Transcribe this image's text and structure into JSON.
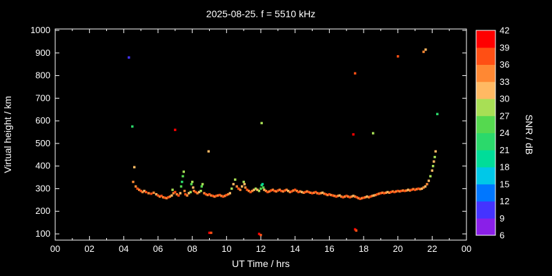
{
  "title": "2025-08-25. f = 5510 kHz",
  "colors": {
    "background": "#000000",
    "foreground": "#ffffff"
  },
  "axes": {
    "x": {
      "label": "UT Time / hrs",
      "tick_hours": [
        0,
        2,
        4,
        6,
        8,
        10,
        12,
        14,
        16,
        18,
        20,
        22,
        24
      ],
      "tick_labels": [
        "00",
        "02",
        "04",
        "06",
        "08",
        "10",
        "12",
        "14",
        "16",
        "18",
        "20",
        "22",
        "00"
      ]
    },
    "y": {
      "label": "Virtual height / km",
      "ticks": [
        100,
        200,
        300,
        400,
        500,
        600,
        700,
        800,
        900,
        1000
      ]
    }
  },
  "colorbar": {
    "label": "SNR / dB",
    "ticks": [
      42,
      39,
      36,
      33,
      30,
      27,
      24,
      21,
      18,
      15,
      12,
      9,
      6
    ],
    "bands": [
      {
        "min": 6,
        "max": 9,
        "color": "#8a1fe8"
      },
      {
        "min": 9,
        "max": 12,
        "color": "#4433ff"
      },
      {
        "min": 12,
        "max": 15,
        "color": "#0077ff"
      },
      {
        "min": 15,
        "max": 18,
        "color": "#00c8e8"
      },
      {
        "min": 18,
        "max": 21,
        "color": "#00dd99"
      },
      {
        "min": 21,
        "max": 24,
        "color": "#2bd96b"
      },
      {
        "min": 24,
        "max": 27,
        "color": "#55d94f"
      },
      {
        "min": 27,
        "max": 30,
        "color": "#a8df55"
      },
      {
        "min": 30,
        "max": 33,
        "color": "#ffb963"
      },
      {
        "min": 33,
        "max": 36,
        "color": "#ff8833"
      },
      {
        "min": 36,
        "max": 39,
        "color": "#ff4f14"
      },
      {
        "min": 39,
        "max": 42,
        "color": "#ff0000"
      }
    ]
  },
  "chart_data": {
    "type": "scatter",
    "title": "2025-08-25. f = 5510 kHz",
    "xlabel": "UT Time / hrs",
    "ylabel": "Virtual height / km",
    "color_label": "SNR / dB",
    "xlim": [
      0,
      24
    ],
    "ylim": [
      100,
      1000
    ],
    "grid": false,
    "points_format": [
      "ut_hours",
      "virtual_height_km",
      "snr_db"
    ],
    "points": [
      [
        4.3,
        880,
        11
      ],
      [
        4.5,
        575,
        23
      ],
      [
        4.62,
        395,
        32
      ],
      [
        7.0,
        560,
        41
      ],
      [
        8.95,
        465,
        32
      ],
      [
        9.0,
        105,
        41
      ],
      [
        9.1,
        105,
        38
      ],
      [
        11.9,
        100,
        41
      ],
      [
        12.0,
        95,
        38
      ],
      [
        12.05,
        590,
        29
      ],
      [
        17.4,
        540,
        41
      ],
      [
        17.5,
        810,
        38
      ],
      [
        17.5,
        120,
        41
      ],
      [
        17.57,
        115,
        38
      ],
      [
        18.55,
        545,
        29
      ],
      [
        20.0,
        885,
        38
      ],
      [
        21.5,
        905,
        35
      ],
      [
        21.62,
        915,
        32
      ],
      [
        22.3,
        630,
        23
      ],
      [
        4.55,
        330,
        35
      ],
      [
        4.7,
        310,
        35
      ],
      [
        4.8,
        300,
        38
      ],
      [
        4.9,
        295,
        35
      ],
      [
        5.0,
        290,
        38
      ],
      [
        5.1,
        285,
        35
      ],
      [
        5.2,
        290,
        32
      ],
      [
        5.3,
        285,
        38
      ],
      [
        5.45,
        280,
        35
      ],
      [
        5.6,
        278,
        38
      ],
      [
        5.75,
        282,
        35
      ],
      [
        5.9,
        275,
        32
      ],
      [
        6.0,
        270,
        38
      ],
      [
        6.1,
        265,
        35
      ],
      [
        6.2,
        268,
        38
      ],
      [
        6.3,
        262,
        35
      ],
      [
        6.4,
        260,
        38
      ],
      [
        6.5,
        258,
        35
      ],
      [
        6.6,
        262,
        38
      ],
      [
        6.7,
        265,
        35
      ],
      [
        6.8,
        270,
        32
      ],
      [
        6.85,
        295,
        29
      ],
      [
        6.9,
        280,
        35
      ],
      [
        7.0,
        285,
        38
      ],
      [
        7.1,
        275,
        35
      ],
      [
        7.2,
        270,
        38
      ],
      [
        7.3,
        280,
        32
      ],
      [
        7.35,
        310,
        26
      ],
      [
        7.4,
        330,
        23
      ],
      [
        7.45,
        355,
        26
      ],
      [
        7.5,
        375,
        29
      ],
      [
        7.55,
        290,
        35
      ],
      [
        7.6,
        275,
        38
      ],
      [
        7.7,
        270,
        35
      ],
      [
        7.8,
        280,
        32
      ],
      [
        7.9,
        285,
        29
      ],
      [
        7.95,
        320,
        26
      ],
      [
        8.0,
        330,
        29
      ],
      [
        8.05,
        305,
        32
      ],
      [
        8.1,
        290,
        35
      ],
      [
        8.2,
        285,
        38
      ],
      [
        8.3,
        280,
        35
      ],
      [
        8.4,
        285,
        32
      ],
      [
        8.5,
        290,
        29
      ],
      [
        8.55,
        310,
        26
      ],
      [
        8.6,
        320,
        29
      ],
      [
        8.7,
        280,
        35
      ],
      [
        8.8,
        275,
        38
      ],
      [
        8.9,
        272,
        35
      ],
      [
        9.0,
        275,
        38
      ],
      [
        9.1,
        270,
        35
      ],
      [
        9.2,
        268,
        38
      ],
      [
        9.3,
        265,
        35
      ],
      [
        9.4,
        268,
        38
      ],
      [
        9.5,
        270,
        35
      ],
      [
        9.6,
        272,
        38
      ],
      [
        9.7,
        268,
        35
      ],
      [
        9.8,
        265,
        38
      ],
      [
        9.9,
        268,
        35
      ],
      [
        10.0,
        272,
        38
      ],
      [
        10.1,
        275,
        35
      ],
      [
        10.2,
        280,
        32
      ],
      [
        10.3,
        300,
        29
      ],
      [
        10.4,
        320,
        32
      ],
      [
        10.5,
        340,
        29
      ],
      [
        10.6,
        310,
        35
      ],
      [
        10.7,
        300,
        38
      ],
      [
        10.8,
        295,
        35
      ],
      [
        10.9,
        310,
        32
      ],
      [
        11.0,
        330,
        29
      ],
      [
        11.05,
        320,
        32
      ],
      [
        11.1,
        305,
        35
      ],
      [
        11.2,
        295,
        38
      ],
      [
        11.3,
        290,
        35
      ],
      [
        11.4,
        285,
        38
      ],
      [
        11.5,
        290,
        35
      ],
      [
        11.6,
        295,
        32
      ],
      [
        11.7,
        300,
        29
      ],
      [
        11.8,
        295,
        32
      ],
      [
        11.9,
        290,
        29
      ],
      [
        12.0,
        300,
        26
      ],
      [
        12.05,
        315,
        23
      ],
      [
        12.1,
        320,
        20
      ],
      [
        12.15,
        305,
        26
      ],
      [
        12.2,
        295,
        32
      ],
      [
        12.3,
        290,
        35
      ],
      [
        12.4,
        285,
        38
      ],
      [
        12.5,
        288,
        35
      ],
      [
        12.6,
        292,
        38
      ],
      [
        12.7,
        295,
        35
      ],
      [
        12.8,
        290,
        38
      ],
      [
        12.9,
        288,
        35
      ],
      [
        13.0,
        292,
        38
      ],
      [
        13.1,
        295,
        35
      ],
      [
        13.2,
        290,
        38
      ],
      [
        13.3,
        288,
        35
      ],
      [
        13.4,
        292,
        38
      ],
      [
        13.5,
        295,
        35
      ],
      [
        13.6,
        290,
        32
      ],
      [
        13.7,
        285,
        35
      ],
      [
        13.8,
        288,
        38
      ],
      [
        13.9,
        292,
        35
      ],
      [
        14.0,
        295,
        38
      ],
      [
        14.1,
        290,
        35
      ],
      [
        14.2,
        285,
        38
      ],
      [
        14.3,
        288,
        35
      ],
      [
        14.4,
        285,
        32
      ],
      [
        14.5,
        282,
        35
      ],
      [
        14.6,
        285,
        38
      ],
      [
        14.7,
        288,
        35
      ],
      [
        14.8,
        285,
        38
      ],
      [
        14.9,
        282,
        35
      ],
      [
        15.0,
        280,
        38
      ],
      [
        15.1,
        282,
        35
      ],
      [
        15.2,
        285,
        38
      ],
      [
        15.3,
        280,
        35
      ],
      [
        15.4,
        278,
        38
      ],
      [
        15.5,
        280,
        35
      ],
      [
        15.6,
        282,
        32
      ],
      [
        15.7,
        278,
        35
      ],
      [
        15.8,
        275,
        38
      ],
      [
        15.9,
        272,
        35
      ],
      [
        16.0,
        275,
        38
      ],
      [
        16.1,
        272,
        35
      ],
      [
        16.2,
        270,
        38
      ],
      [
        16.3,
        268,
        35
      ],
      [
        16.4,
        265,
        38
      ],
      [
        16.5,
        268,
        35
      ],
      [
        16.6,
        270,
        32
      ],
      [
        16.7,
        265,
        35
      ],
      [
        16.8,
        262,
        38
      ],
      [
        16.9,
        265,
        35
      ],
      [
        17.0,
        268,
        38
      ],
      [
        17.1,
        265,
        35
      ],
      [
        17.2,
        262,
        38
      ],
      [
        17.3,
        265,
        35
      ],
      [
        17.4,
        268,
        32
      ],
      [
        17.5,
        265,
        35
      ],
      [
        17.6,
        262,
        38
      ],
      [
        17.7,
        258,
        35
      ],
      [
        17.8,
        255,
        38
      ],
      [
        17.9,
        258,
        35
      ],
      [
        18.0,
        260,
        38
      ],
      [
        18.1,
        262,
        35
      ],
      [
        18.2,
        265,
        32
      ],
      [
        18.3,
        262,
        35
      ],
      [
        18.4,
        265,
        38
      ],
      [
        18.5,
        268,
        35
      ],
      [
        18.6,
        270,
        32
      ],
      [
        18.7,
        272,
        35
      ],
      [
        18.8,
        275,
        38
      ],
      [
        18.9,
        278,
        35
      ],
      [
        19.0,
        280,
        38
      ],
      [
        19.1,
        282,
        35
      ],
      [
        19.2,
        280,
        38
      ],
      [
        19.3,
        282,
        35
      ],
      [
        19.4,
        285,
        32
      ],
      [
        19.5,
        282,
        35
      ],
      [
        19.6,
        285,
        38
      ],
      [
        19.7,
        288,
        35
      ],
      [
        19.8,
        285,
        38
      ],
      [
        19.9,
        288,
        35
      ],
      [
        20.0,
        290,
        38
      ],
      [
        20.1,
        288,
        35
      ],
      [
        20.2,
        290,
        38
      ],
      [
        20.3,
        292,
        35
      ],
      [
        20.4,
        290,
        38
      ],
      [
        20.5,
        292,
        35
      ],
      [
        20.6,
        295,
        32
      ],
      [
        20.7,
        292,
        35
      ],
      [
        20.8,
        295,
        38
      ],
      [
        20.9,
        298,
        35
      ],
      [
        21.0,
        295,
        38
      ],
      [
        21.1,
        298,
        35
      ],
      [
        21.2,
        300,
        38
      ],
      [
        21.3,
        298,
        35
      ],
      [
        21.4,
        300,
        32
      ],
      [
        21.5,
        305,
        35
      ],
      [
        21.6,
        310,
        32
      ],
      [
        21.7,
        320,
        35
      ],
      [
        21.8,
        335,
        32
      ],
      [
        21.9,
        355,
        29
      ],
      [
        22.0,
        380,
        32
      ],
      [
        22.05,
        400,
        29
      ],
      [
        22.1,
        420,
        32
      ],
      [
        22.15,
        440,
        29
      ],
      [
        22.2,
        465,
        32
      ]
    ]
  }
}
